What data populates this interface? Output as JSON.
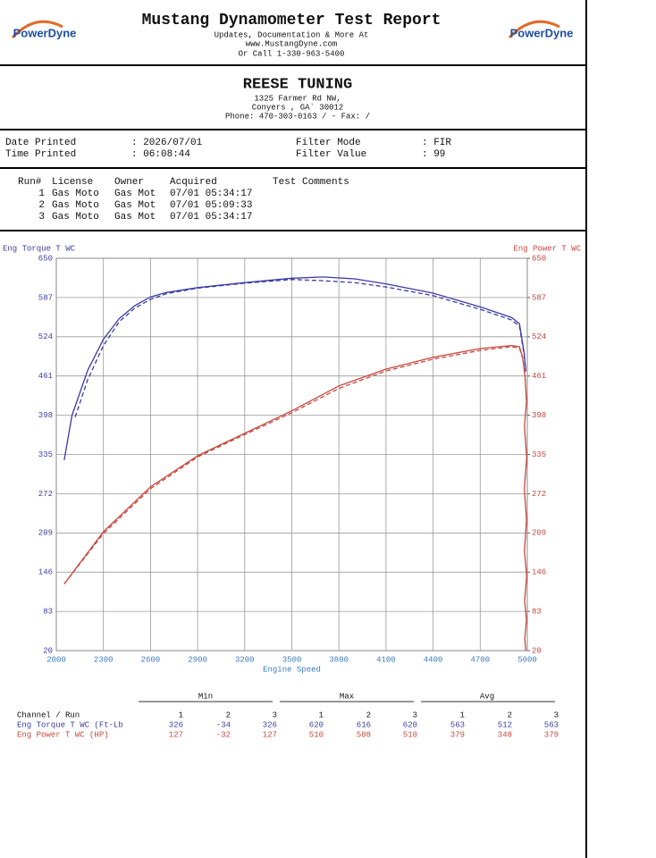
{
  "header": {
    "title": "Mustang Dynamometer Test Report",
    "lines": [
      "Updates, Documentation & More At",
      "www.MustangDyne.com",
      "Or Call 1-330-963-5400"
    ],
    "logos": [
      "PowerDyne",
      "PowerDyne"
    ]
  },
  "shop": {
    "name": "REESE TUNING",
    "lines": [
      "1325 Farmer Rd NW,",
      "Conyers , GA`  30012",
      "Phone: 470-303-0163 /  - Fax:  /"
    ]
  },
  "info": [
    [
      "Date Printed",
      ": 2026/07/01",
      "Filter Mode",
      ": FIR"
    ],
    [
      "Time Printed",
      ": 06:08:44",
      "Filter Value",
      ": 99"
    ]
  ],
  "runs": {
    "headers": [
      "Run#",
      "License",
      "Owner",
      "Acquired",
      "Test Comments"
    ],
    "rows": [
      [
        "1",
        "Gas Moto",
        "Gas Mot",
        "07/01 05:34:17"
      ],
      [
        "2",
        "Gas Moto",
        "Gas Mot",
        "07/01 05:09:33"
      ],
      [
        "3",
        "Gas Moto",
        "Gas Mot",
        "07/01 05:34:17"
      ]
    ]
  },
  "chart_data": {
    "type": "line",
    "ylabel": "Eng Torque T WC",
    "y2label": "Eng Power T WC",
    "xlabel": "Engine Speed",
    "xlim": [
      2000,
      5000
    ],
    "xticks": [
      2000,
      2300,
      2600,
      2900,
      3200,
      3500,
      3800,
      4100,
      4400,
      4700,
      5000
    ],
    "ylim": [
      20,
      650
    ],
    "yticks": [
      20,
      83,
      146,
      209,
      272,
      335,
      398,
      461,
      524,
      587,
      650
    ],
    "y2lim": [
      20,
      650
    ],
    "y2ticks": [
      20,
      83,
      146,
      209,
      272,
      335,
      398,
      461,
      524,
      587,
      650
    ],
    "grid": true,
    "series": [
      {
        "color": "#3b3ba6",
        "dash": false,
        "x": [
          2050,
          2100,
          2200,
          2300,
          2400,
          2500,
          2600,
          2700,
          2900,
          3200,
          3500,
          3700,
          3900,
          4100,
          4400,
          4700,
          4900,
          4950,
          4980,
          4990
        ],
        "values": [
          326,
          398,
          470,
          520,
          553,
          574,
          588,
          595,
          603,
          611,
          618,
          620,
          617,
          609,
          594,
          572,
          555,
          545,
          498,
          470
        ]
      },
      {
        "color": "#3b3ba6",
        "dash": true,
        "x": [
          2120,
          2200,
          2300,
          2400,
          2500,
          2600,
          2700,
          2900,
          3200,
          3500,
          3700,
          3900,
          4100,
          4400,
          4700,
          4900,
          4950,
          4980,
          4990
        ],
        "values": [
          395,
          455,
          510,
          548,
          570,
          584,
          593,
          602,
          610,
          616,
          614,
          611,
          604,
          590,
          568,
          551,
          541,
          495,
          468
        ]
      },
      {
        "color": "#c8463c",
        "dash": false,
        "axis": "y2",
        "x": [
          2050,
          2300,
          2600,
          2900,
          3200,
          3500,
          3800,
          4100,
          4400,
          4700,
          4900,
          4950,
          4970,
          4985,
          4995,
          4982,
          4996,
          4981,
          4995,
          4982,
          4996,
          4983,
          4995,
          4984,
          4990
        ],
        "values": [
          127,
          211,
          283,
          333,
          369,
          405,
          445,
          472,
          491,
          505,
          510,
          508,
          491,
          460,
          420,
          380,
          330,
          280,
          230,
          180,
          140,
          100,
          70,
          40,
          20
        ]
      },
      {
        "color": "#c8463c",
        "dash": true,
        "axis": "y2",
        "x": [
          2050,
          2300,
          2600,
          2900,
          3200,
          3500,
          3800,
          4100,
          4400,
          4700,
          4900,
          4950,
          4970
        ],
        "values": [
          127,
          208,
          280,
          331,
          367,
          402,
          441,
          469,
          488,
          502,
          508,
          506,
          490
        ]
      }
    ]
  },
  "summary": {
    "groups": [
      "Min",
      "Max",
      "Avg"
    ],
    "channel_header": "Channel / Run",
    "runs": [
      1,
      2,
      3,
      1,
      2,
      3,
      1,
      2,
      3
    ],
    "rows": [
      {
        "name": "Eng Torque T WC (Ft-Lb",
        "color": "#3b3ba6",
        "values": [
          326,
          -34,
          326,
          620,
          616,
          620,
          563,
          512,
          563
        ]
      },
      {
        "name": "Eng Power T WC (HP)",
        "color": "#c8463c",
        "values": [
          127,
          -32,
          127,
          510,
          508,
          510,
          379,
          348,
          379
        ]
      }
    ]
  }
}
